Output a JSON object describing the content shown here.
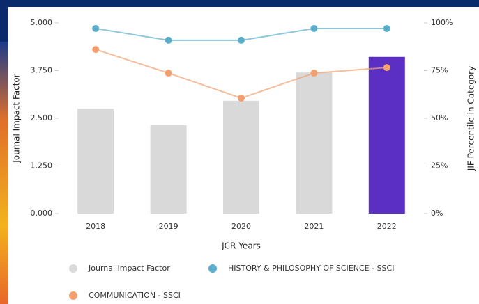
{
  "chart_data": {
    "type": "bar",
    "categories": [
      "2018",
      "2019",
      "2020",
      "2021",
      "2022"
    ],
    "x_label": "JCR Years",
    "y_label": "Journal Impact Factor",
    "y2_label": "JIF Percentile in Category",
    "series": [
      {
        "name": "Journal Impact Factor",
        "color": "#d9d9d9",
        "colors": [
          "#d9d9d9",
          "#d9d9d9",
          "#d9d9d9",
          "#d9d9d9",
          "#5b2fc4"
        ],
        "values": [
          2.75,
          2.32,
          2.96,
          3.7,
          4.11
        ]
      },
      {
        "name": "HISTORY & PHILOSOPHY OF SCIENCE - SSCI",
        "color": "#5aaec9",
        "axis": "y2",
        "values": [
          97.1,
          90.9,
          90.9,
          97.1,
          97.1
        ]
      },
      {
        "name": "COMMUNICATION - SSCI",
        "color": "#f4a06e",
        "axis": "y2",
        "values": [
          86.1,
          73.7,
          60.6,
          73.7,
          76.6
        ]
      }
    ],
    "ylim": [
      0,
      5
    ],
    "yticks": [
      {
        "value": 0,
        "label": "0.000"
      },
      {
        "value": 1.25,
        "label": "1.250"
      },
      {
        "value": 2.5,
        "label": "2.500"
      },
      {
        "value": 3.75,
        "label": "3.750"
      },
      {
        "value": 5,
        "label": "5.000"
      }
    ],
    "y2lim": [
      0,
      100
    ],
    "y2ticks": [
      {
        "value": 0,
        "label": "0%"
      },
      {
        "value": 25,
        "label": "25%"
      },
      {
        "value": 50,
        "label": "50%"
      },
      {
        "value": 75,
        "label": "75%"
      },
      {
        "value": 100,
        "label": "100%"
      }
    ]
  }
}
